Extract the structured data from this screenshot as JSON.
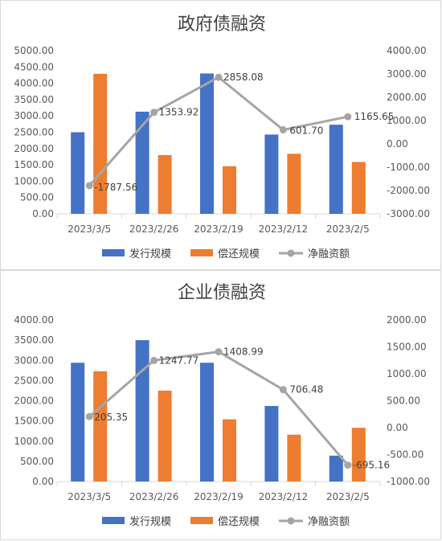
{
  "legend": [
    "发行规模",
    "偿还规模",
    "净融资额"
  ],
  "colors": {
    "issue": "#4472C4",
    "repay": "#ED7D31",
    "net": "#A5A5A5",
    "axis": "#d9d9d9"
  },
  "chart_data": [
    {
      "type": "bar",
      "title": "政府债融资",
      "categories": [
        "2023/3/5",
        "2023/2/26",
        "2023/2/19",
        "2023/2/12",
        "2023/2/5"
      ],
      "series": [
        {
          "name": "发行规模",
          "type": "bar",
          "axis": "left",
          "values": [
            2500,
            3130,
            4300,
            2430,
            2730
          ]
        },
        {
          "name": "偿还规模",
          "type": "bar",
          "axis": "left",
          "values": [
            4290,
            1800,
            1460,
            1840,
            1590
          ]
        },
        {
          "name": "净融资额",
          "type": "line",
          "axis": "right",
          "values": [
            -1787.56,
            1353.92,
            2858.08,
            601.7,
            1165.65
          ]
        }
      ],
      "data_labels": [
        "-1787.56",
        "1353.92",
        "2858.08",
        "601.70",
        "1165.65"
      ],
      "y_left": {
        "min": 0,
        "max": 5000,
        "step": 500,
        "ticks": [
          "0.00",
          "500.00",
          "1000.00",
          "1500.00",
          "2000.00",
          "2500.00",
          "3000.00",
          "3500.00",
          "4000.00",
          "4500.00",
          "5000.00"
        ]
      },
      "y_right": {
        "min": -3000,
        "max": 4000,
        "step": 1000,
        "ticks": [
          "-3000.00",
          "-2000.00",
          "-1000.00",
          "0.00",
          "1000.00",
          "2000.00",
          "3000.00",
          "4000.00"
        ]
      },
      "legend_position": "bottom",
      "grid": false
    },
    {
      "type": "bar",
      "title": "企业债融资",
      "categories": [
        "2023/3/5",
        "2023/2/26",
        "2023/2/19",
        "2023/2/12",
        "2023/2/5"
      ],
      "series": [
        {
          "name": "发行规模",
          "type": "bar",
          "axis": "left",
          "values": [
            2940,
            3500,
            2940,
            1870,
            640
          ]
        },
        {
          "name": "偿还规模",
          "type": "bar",
          "axis": "left",
          "values": [
            2730,
            2250,
            1540,
            1160,
            1330
          ]
        },
        {
          "name": "净融资额",
          "type": "line",
          "axis": "right",
          "values": [
            205.35,
            1247.77,
            1408.99,
            706.48,
            -695.16
          ]
        }
      ],
      "data_labels": [
        "205.35",
        "1247.77",
        "1408.99",
        "706.48",
        "-695.16"
      ],
      "y_left": {
        "min": 0,
        "max": 4000,
        "step": 500,
        "ticks": [
          "0.00",
          "500.00",
          "1000.00",
          "1500.00",
          "2000.00",
          "2500.00",
          "3000.00",
          "3500.00",
          "4000.00"
        ]
      },
      "y_right": {
        "min": -1000,
        "max": 2000,
        "step": 500,
        "ticks": [
          "-1000.00",
          "-500.00",
          "0.00",
          "500.00",
          "1000.00",
          "1500.00",
          "2000.00"
        ]
      },
      "legend_position": "bottom",
      "grid": false
    }
  ]
}
